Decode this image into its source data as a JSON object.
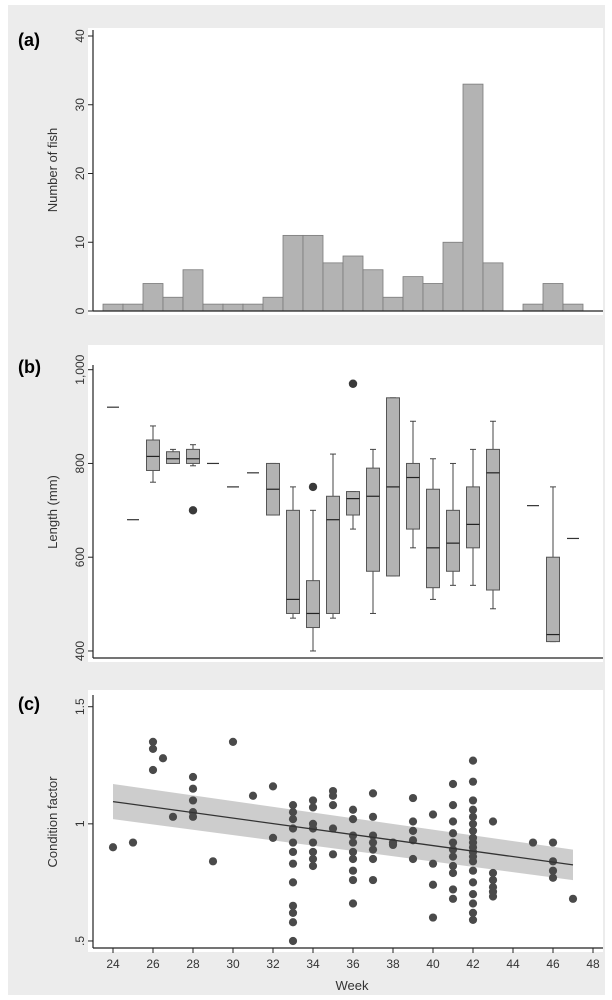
{
  "chart_data": [
    {
      "panel": "(a)",
      "type": "bar",
      "ylabel": "Number of fish",
      "xlim": [
        23,
        48.5
      ],
      "ylim": [
        0,
        40
      ],
      "yticks": [
        0,
        10,
        20,
        30,
        40
      ],
      "grid": false,
      "bin_width": 1,
      "bins": [
        {
          "x": 24,
          "count": 1
        },
        {
          "x": 25,
          "count": 1
        },
        {
          "x": 26,
          "count": 4
        },
        {
          "x": 27,
          "count": 2
        },
        {
          "x": 28,
          "count": 6
        },
        {
          "x": 29,
          "count": 1
        },
        {
          "x": 30,
          "count": 1
        },
        {
          "x": 31,
          "count": 1
        },
        {
          "x": 32,
          "count": 2
        },
        {
          "x": 33,
          "count": 11
        },
        {
          "x": 34,
          "count": 11
        },
        {
          "x": 35,
          "count": 7
        },
        {
          "x": 36,
          "count": 8
        },
        {
          "x": 37,
          "count": 6
        },
        {
          "x": 38,
          "count": 2
        },
        {
          "x": 39,
          "count": 5
        },
        {
          "x": 40,
          "count": 4
        },
        {
          "x": 41,
          "count": 10
        },
        {
          "x": 42,
          "count": 33
        },
        {
          "x": 43,
          "count": 7
        },
        {
          "x": 44,
          "count": 0
        },
        {
          "x": 45,
          "count": 1
        },
        {
          "x": 46,
          "count": 4
        },
        {
          "x": 47,
          "count": 1
        }
      ]
    },
    {
      "panel": "(b)",
      "type": "box",
      "ylabel": "Length (mm)",
      "xlim": [
        23,
        48.5
      ],
      "ylim": [
        385,
        1010
      ],
      "yticks": [
        {
          "v": 400,
          "t": "400"
        },
        {
          "v": 600,
          "t": "600"
        },
        {
          "v": 800,
          "t": "800"
        },
        {
          "v": 1000,
          "t": "1,000"
        }
      ],
      "grid": false,
      "single_values": [
        {
          "x": 24,
          "value": 920
        },
        {
          "x": 25,
          "value": 680
        },
        {
          "x": 29,
          "value": 800
        },
        {
          "x": 30,
          "value": 750
        },
        {
          "x": 31,
          "value": 780
        },
        {
          "x": 45,
          "value": 710
        },
        {
          "x": 47,
          "value": 640
        }
      ],
      "boxes": [
        {
          "x": 26,
          "min": 760,
          "q1": 785,
          "median": 815,
          "q3": 850,
          "max": 880,
          "outliers": []
        },
        {
          "x": 27,
          "min": 800,
          "q1": 800,
          "median": 810,
          "q3": 825,
          "max": 830,
          "outliers": []
        },
        {
          "x": 28,
          "min": 795,
          "q1": 800,
          "median": 810,
          "q3": 830,
          "max": 840,
          "outliers": [
            700
          ]
        },
        {
          "x": 32,
          "min": 690,
          "q1": 690,
          "median": 745,
          "q3": 800,
          "max": 800,
          "outliers": []
        },
        {
          "x": 33,
          "min": 470,
          "q1": 480,
          "median": 510,
          "q3": 700,
          "max": 750,
          "outliers": []
        },
        {
          "x": 34,
          "min": 400,
          "q1": 450,
          "median": 480,
          "q3": 550,
          "max": 700,
          "outliers": [
            750
          ]
        },
        {
          "x": 35,
          "min": 470,
          "q1": 480,
          "median": 680,
          "q3": 730,
          "max": 820,
          "outliers": []
        },
        {
          "x": 36,
          "min": 660,
          "q1": 690,
          "median": 725,
          "q3": 740,
          "max": 740,
          "outliers": [
            970
          ]
        },
        {
          "x": 37,
          "min": 480,
          "q1": 570,
          "median": 730,
          "q3": 790,
          "max": 830,
          "outliers": []
        },
        {
          "x": 38,
          "min": 560,
          "q1": 560,
          "median": 750,
          "q3": 940,
          "max": 940,
          "outliers": []
        },
        {
          "x": 39,
          "min": 620,
          "q1": 660,
          "median": 770,
          "q3": 800,
          "max": 890,
          "outliers": []
        },
        {
          "x": 40,
          "min": 510,
          "q1": 535,
          "median": 620,
          "q3": 745,
          "max": 810,
          "outliers": []
        },
        {
          "x": 41,
          "min": 540,
          "q1": 570,
          "median": 630,
          "q3": 700,
          "max": 800,
          "outliers": []
        },
        {
          "x": 42,
          "min": 540,
          "q1": 620,
          "median": 670,
          "q3": 750,
          "max": 830,
          "outliers": []
        },
        {
          "x": 43,
          "min": 490,
          "q1": 530,
          "median": 780,
          "q3": 830,
          "max": 890,
          "outliers": []
        },
        {
          "x": 46,
          "min": 420,
          "q1": 420,
          "median": 435,
          "q3": 600,
          "max": 750,
          "outliers": []
        }
      ]
    },
    {
      "panel": "(c)",
      "type": "scatter",
      "ylabel": "Condition factor",
      "xlabel": "Week",
      "xlim": [
        23,
        48.5
      ],
      "ylim": [
        0.47,
        1.55
      ],
      "yticks": [
        {
          "v": 0.5,
          "t": ".5"
        },
        {
          "v": 1,
          "t": "1"
        },
        {
          "v": 1.5,
          "t": "1.5"
        }
      ],
      "xticks": [
        24,
        26,
        28,
        30,
        32,
        34,
        36,
        38,
        40,
        42,
        44,
        46,
        48
      ],
      "grid": false,
      "fit_line": {
        "x": [
          24,
          47
        ],
        "y": [
          1.095,
          0.825
        ]
      },
      "ci_band": {
        "x": [
          24,
          47
        ],
        "upper": [
          1.17,
          0.89
        ],
        "lower": [
          1.02,
          0.76
        ]
      },
      "points": [
        [
          24,
          0.9
        ],
        [
          25,
          0.92
        ],
        [
          26,
          1.35
        ],
        [
          26,
          1.32
        ],
        [
          26,
          1.23
        ],
        [
          26.5,
          1.28
        ],
        [
          27,
          1.03
        ],
        [
          28,
          1.2
        ],
        [
          28,
          1.15
        ],
        [
          28,
          1.1
        ],
        [
          28,
          1.05
        ],
        [
          28,
          1.03
        ],
        [
          29,
          0.84
        ],
        [
          30,
          1.35
        ],
        [
          31,
          1.12
        ],
        [
          32,
          1.16
        ],
        [
          32,
          0.94
        ],
        [
          33,
          1.08
        ],
        [
          33,
          1.05
        ],
        [
          33,
          1.02
        ],
        [
          33,
          0.98
        ],
        [
          33,
          0.92
        ],
        [
          33,
          0.88
        ],
        [
          33,
          0.83
        ],
        [
          33,
          0.75
        ],
        [
          33,
          0.65
        ],
        [
          33,
          0.62
        ],
        [
          33,
          0.58
        ],
        [
          33,
          0.5
        ],
        [
          34,
          1.1
        ],
        [
          34,
          1.07
        ],
        [
          34,
          1.0
        ],
        [
          34,
          0.98
        ],
        [
          34,
          0.92
        ],
        [
          34,
          0.88
        ],
        [
          34,
          0.85
        ],
        [
          34,
          0.82
        ],
        [
          35,
          1.14
        ],
        [
          35,
          1.12
        ],
        [
          35,
          1.08
        ],
        [
          35,
          0.98
        ],
        [
          35,
          0.87
        ],
        [
          36,
          1.06
        ],
        [
          36,
          1.02
        ],
        [
          36,
          0.95
        ],
        [
          36,
          0.92
        ],
        [
          36,
          0.88
        ],
        [
          36,
          0.85
        ],
        [
          36,
          0.8
        ],
        [
          36,
          0.76
        ],
        [
          36,
          0.66
        ],
        [
          37,
          1.13
        ],
        [
          37,
          1.03
        ],
        [
          37,
          0.95
        ],
        [
          37,
          0.92
        ],
        [
          37,
          0.89
        ],
        [
          37,
          0.85
        ],
        [
          37,
          0.76
        ],
        [
          38,
          0.92
        ],
        [
          38,
          0.91
        ],
        [
          39,
          1.11
        ],
        [
          39,
          1.01
        ],
        [
          39,
          0.97
        ],
        [
          39,
          0.93
        ],
        [
          39,
          0.85
        ],
        [
          40,
          1.04
        ],
        [
          40,
          0.83
        ],
        [
          40,
          0.74
        ],
        [
          40,
          0.6
        ],
        [
          41,
          1.17
        ],
        [
          41,
          1.08
        ],
        [
          41,
          1.01
        ],
        [
          41,
          0.96
        ],
        [
          41,
          0.92
        ],
        [
          41,
          0.89
        ],
        [
          41,
          0.86
        ],
        [
          41,
          0.82
        ],
        [
          41,
          0.79
        ],
        [
          41,
          0.72
        ],
        [
          41,
          0.68
        ],
        [
          42,
          1.27
        ],
        [
          42,
          1.18
        ],
        [
          42,
          1.1
        ],
        [
          42,
          1.06
        ],
        [
          42,
          1.03
        ],
        [
          42,
          1.0
        ],
        [
          42,
          0.97
        ],
        [
          42,
          0.94
        ],
        [
          42,
          0.92
        ],
        [
          42,
          0.9
        ],
        [
          42,
          0.88
        ],
        [
          42,
          0.86
        ],
        [
          42,
          0.84
        ],
        [
          42,
          0.8
        ],
        [
          42,
          0.75
        ],
        [
          42,
          0.7
        ],
        [
          42,
          0.66
        ],
        [
          42,
          0.62
        ],
        [
          42,
          0.59
        ],
        [
          43,
          1.01
        ],
        [
          43,
          0.79
        ],
        [
          43,
          0.76
        ],
        [
          43,
          0.73
        ],
        [
          43,
          0.71
        ],
        [
          43,
          0.69
        ],
        [
          45,
          0.92
        ],
        [
          46,
          0.92
        ],
        [
          46,
          0.84
        ],
        [
          46,
          0.8
        ],
        [
          46,
          0.77
        ],
        [
          47,
          0.68
        ]
      ]
    }
  ]
}
